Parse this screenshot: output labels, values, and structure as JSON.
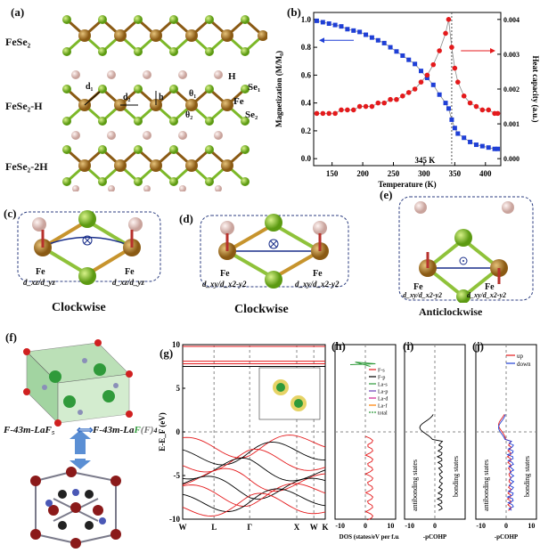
{
  "panel_labels": {
    "a": "(a)",
    "b": "(b)",
    "c": "(c)",
    "d": "(d)",
    "e": "(e)",
    "f": "(f)",
    "g": "(g)",
    "h": "(h)",
    "i": "(i)",
    "j": "(j)"
  },
  "panel_a": {
    "rows": [
      "FeSe₂",
      "FeSe₂-H",
      "FeSe₂-2H"
    ],
    "atom_labels": {
      "h": "H",
      "se1": "Se₁",
      "fe": "Fe",
      "se2": "Se₂"
    },
    "geom_labels": {
      "d1": "d₁",
      "d2": "d₂",
      "h": "h",
      "theta1": "θ₁",
      "theta2": "θ₂"
    }
  },
  "panel_b": {
    "xlabel": "Temperature (K)",
    "ylabel_left": "Magnetization (M/M₀)",
    "ylabel_right": "Heat capacity (a.u.)",
    "annotation": "345 K",
    "colors": {
      "magnetization": "#1f3fd6",
      "heat": "#e41a1c"
    }
  },
  "panel_c": {
    "title": "Clockwise",
    "orbital_left": "d_xz/d_yz",
    "orbital_right": "d_xz/d_yz",
    "atom": "Fe"
  },
  "panel_d": {
    "title": "Clockwise",
    "orbital_left": "d_xy/d_x2-y2",
    "orbital_right": "d_xy/d_x2-y2",
    "atom": "Fe"
  },
  "panel_e": {
    "title": "Anticlockwise",
    "orbital_left": "d_xy/d_x2-y2",
    "orbital_right": "d_xy/d_x2-y2",
    "atom": "Fe"
  },
  "panel_f": {
    "formula_left": "F-43m-LaF₅",
    "formula_right_a": "F-43m-La",
    "formula_right_b": "F",
    "formula_right_c": "(F)",
    "formula_right_d": "4"
  },
  "panel_g": {
    "ylabel": "E-E_F (eV)",
    "kpoints": [
      "W",
      "L",
      "Γ",
      "X",
      "W",
      "K"
    ],
    "yticks": [
      "10",
      "5",
      "0",
      "-5",
      "-10"
    ]
  },
  "panel_h": {
    "xlabel": "DOS (states/eV per f.u.)",
    "legend": [
      "F-s",
      "F-p",
      "La-s",
      "La-p",
      "La-d",
      "La-f",
      "total"
    ],
    "xticks": [
      "-10",
      "0",
      "10"
    ]
  },
  "panel_i": {
    "xlabel": "-pCOHP",
    "text_anti": "antibonding states",
    "text_bond": "bonding states",
    "xticks": [
      "-10",
      "0"
    ]
  },
  "panel_j": {
    "xlabel": "-pCOHP",
    "text_anti": "antibonding states",
    "text_bond": "bonding states",
    "legend": [
      "up",
      "down"
    ],
    "xticks": [
      "-10",
      "0",
      "10"
    ]
  },
  "chart_data": [
    {
      "type": "scatter",
      "title": "",
      "xlabel": "Temperature (K)",
      "ylabel": "Magnetization (M/M₀)",
      "xlim": [
        120,
        425
      ],
      "ylim": [
        -0.05,
        1.05
      ],
      "series": [
        {
          "name": "",
          "axis": "left",
          "x": [
            125,
            135,
            145,
            155,
            165,
            175,
            185,
            195,
            205,
            215,
            225,
            235,
            245,
            255,
            265,
            275,
            285,
            295,
            305,
            315,
            325,
            335,
            340,
            345,
            350,
            355,
            365,
            375,
            385,
            395,
            405,
            415,
            420
          ],
          "values": [
            0.99,
            0.98,
            0.97,
            0.96,
            0.95,
            0.93,
            0.92,
            0.91,
            0.89,
            0.87,
            0.85,
            0.83,
            0.8,
            0.77,
            0.74,
            0.71,
            0.68,
            0.63,
            0.58,
            0.53,
            0.46,
            0.4,
            0.36,
            0.28,
            0.22,
            0.18,
            0.15,
            0.12,
            0.1,
            0.09,
            0.08,
            0.07,
            0.07
          ]
        },
        {
          "name": "",
          "axis": "right",
          "x": [
            125,
            135,
            145,
            155,
            165,
            175,
            185,
            195,
            205,
            215,
            225,
            235,
            245,
            255,
            265,
            275,
            285,
            295,
            305,
            315,
            325,
            335,
            340,
            345,
            350,
            355,
            365,
            375,
            385,
            395,
            405,
            415,
            420
          ],
          "values": [
            0.0013,
            0.0013,
            0.0013,
            0.0013,
            0.0014,
            0.0014,
            0.0014,
            0.0015,
            0.0015,
            0.0015,
            0.0016,
            0.0016,
            0.0017,
            0.0017,
            0.0018,
            0.0019,
            0.002,
            0.0022,
            0.0024,
            0.0027,
            0.0031,
            0.0036,
            0.004,
            0.0032,
            0.0026,
            0.0022,
            0.0018,
            0.0016,
            0.0015,
            0.0014,
            0.0014,
            0.0013,
            0.0013
          ]
        }
      ],
      "xticks": [
        150,
        200,
        250,
        300,
        350,
        400
      ],
      "yticks_left": [
        0.0,
        0.2,
        0.4,
        0.6,
        0.8,
        1.0
      ],
      "yticks_right": [
        0.0,
        0.001,
        0.002,
        0.003,
        0.004
      ],
      "ylim_right": [
        -0.0002,
        0.0042
      ],
      "marker_line_x": 345
    }
  ]
}
